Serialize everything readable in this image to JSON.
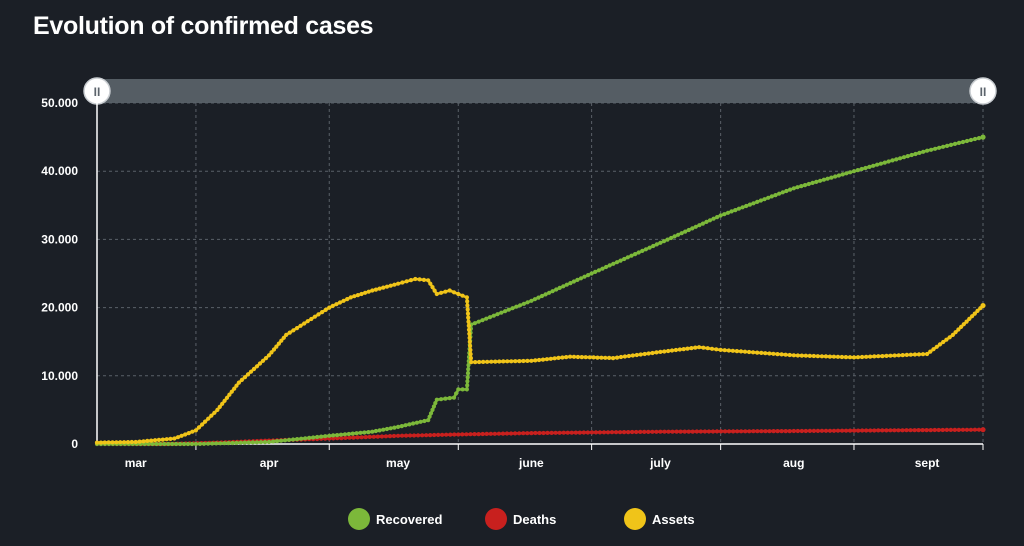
{
  "title": "Evolution of confirmed cases",
  "colors": {
    "background": "#1b1f26",
    "grid": "#5a6068",
    "axis": "#ffffff",
    "scrollbar": "#5c646c"
  },
  "scrollbar": {
    "left_handle": "II",
    "right_handle": "II"
  },
  "chart_data": {
    "type": "line",
    "xlabel": "",
    "ylabel": "",
    "x_ticks": [
      "mar",
      "apr",
      "may",
      "june",
      "july",
      "aug",
      "sept"
    ],
    "y_ticks": [
      "0",
      "10.000",
      "20.000",
      "30.000",
      "40.000",
      "50.000"
    ],
    "ylim": [
      0,
      50000
    ],
    "grid": true,
    "legend_position": "bottom-center",
    "series": [
      {
        "name": "Recovered",
        "color": "#7cb83a",
        "points": [
          [
            "2020-02-21",
            0
          ],
          [
            "2020-03-15",
            0
          ],
          [
            "2020-04-01",
            300
          ],
          [
            "2020-04-15",
            1200
          ],
          [
            "2020-04-25",
            1800
          ],
          [
            "2020-05-01",
            2500
          ],
          [
            "2020-05-08",
            3500
          ],
          [
            "2020-05-10",
            6500
          ],
          [
            "2020-05-14",
            6800
          ],
          [
            "2020-05-15",
            8000
          ],
          [
            "2020-05-17",
            8000
          ],
          [
            "2020-05-18",
            17500
          ],
          [
            "2020-06-01",
            21000
          ],
          [
            "2020-06-15",
            25000
          ],
          [
            "2020-07-01",
            29500
          ],
          [
            "2020-07-15",
            33500
          ],
          [
            "2020-08-01",
            37500
          ],
          [
            "2020-08-15",
            40000
          ],
          [
            "2020-09-01",
            43000
          ],
          [
            "2020-09-14",
            45000
          ]
        ]
      },
      {
        "name": "Deaths",
        "color": "#c8201e",
        "points": [
          [
            "2020-02-21",
            0
          ],
          [
            "2020-03-08",
            0
          ],
          [
            "2020-03-20",
            200
          ],
          [
            "2020-04-01",
            500
          ],
          [
            "2020-04-15",
            800
          ],
          [
            "2020-05-01",
            1200
          ],
          [
            "2020-05-15",
            1400
          ],
          [
            "2020-06-01",
            1600
          ],
          [
            "2020-07-01",
            1800
          ],
          [
            "2020-08-01",
            1900
          ],
          [
            "2020-09-14",
            2100
          ]
        ]
      },
      {
        "name": "Assets",
        "color": "#f0c419",
        "points": [
          [
            "2020-02-21",
            200
          ],
          [
            "2020-03-01",
            300
          ],
          [
            "2020-03-10",
            800
          ],
          [
            "2020-03-15",
            2000
          ],
          [
            "2020-03-20",
            5000
          ],
          [
            "2020-03-25",
            9000
          ],
          [
            "2020-04-01",
            13000
          ],
          [
            "2020-04-05",
            16000
          ],
          [
            "2020-04-10",
            18000
          ],
          [
            "2020-04-15",
            20000
          ],
          [
            "2020-04-20",
            21500
          ],
          [
            "2020-04-25",
            22500
          ],
          [
            "2020-05-01",
            23500
          ],
          [
            "2020-05-05",
            24200
          ],
          [
            "2020-05-08",
            24000
          ],
          [
            "2020-05-10",
            22000
          ],
          [
            "2020-05-13",
            22500
          ],
          [
            "2020-05-15",
            22000
          ],
          [
            "2020-05-17",
            21500
          ],
          [
            "2020-05-18",
            12000
          ],
          [
            "2020-06-01",
            12200
          ],
          [
            "2020-06-10",
            12800
          ],
          [
            "2020-06-20",
            12600
          ],
          [
            "2020-07-01",
            13500
          ],
          [
            "2020-07-10",
            14200
          ],
          [
            "2020-07-15",
            13800
          ],
          [
            "2020-08-01",
            13000
          ],
          [
            "2020-08-15",
            12700
          ],
          [
            "2020-09-01",
            13200
          ],
          [
            "2020-09-07",
            16000
          ],
          [
            "2020-09-14",
            20300
          ]
        ]
      }
    ]
  }
}
